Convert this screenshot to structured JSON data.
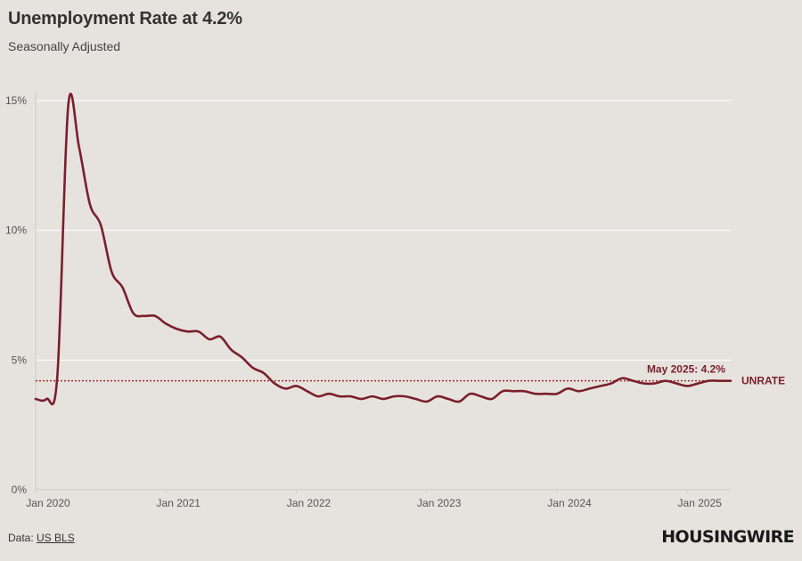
{
  "header": {
    "title": "Unemployment Rate at 4.2%",
    "subtitle": "Seasonally Adjusted"
  },
  "footer": {
    "source_prefix": "Data: ",
    "source_link": "US BLS",
    "logo": "HOUSINGWIRE"
  },
  "colors": {
    "line": "#7b1f2b",
    "reference_line": "#a52a2a",
    "annotation": "#7b1f2b",
    "grid": "#ffffff",
    "background": "#e6e3df"
  },
  "chart_data": {
    "type": "line",
    "title": "Unemployment Rate at 4.2%",
    "subtitle": "Seasonally Adjusted",
    "ylim": [
      0,
      15
    ],
    "y_ticks": [
      0,
      5,
      10,
      15
    ],
    "y_tick_labels": [
      "0%",
      "5%",
      "10%",
      "15%"
    ],
    "x_tick_labels": [
      "Jan 2020",
      "Jan 2021",
      "Jan 2022",
      "Jan 2023",
      "Jan 2024",
      "Jan 2025"
    ],
    "x_range": [
      "2020-01",
      "2025-05"
    ],
    "grid": true,
    "series": [
      {
        "name": "UNRATE",
        "x": [
          "2020-01",
          "2020-02",
          "2020-03",
          "2020-04",
          "2020-05",
          "2020-06",
          "2020-07",
          "2020-08",
          "2020-09",
          "2020-10",
          "2020-11",
          "2020-12",
          "2021-01",
          "2021-02",
          "2021-03",
          "2021-04",
          "2021-05",
          "2021-06",
          "2021-07",
          "2021-08",
          "2021-09",
          "2021-10",
          "2021-11",
          "2021-12",
          "2022-01",
          "2022-02",
          "2022-03",
          "2022-04",
          "2022-05",
          "2022-06",
          "2022-07",
          "2022-08",
          "2022-09",
          "2022-10",
          "2022-11",
          "2022-12",
          "2023-01",
          "2023-02",
          "2023-03",
          "2023-04",
          "2023-05",
          "2023-06",
          "2023-07",
          "2023-08",
          "2023-09",
          "2023-10",
          "2023-11",
          "2023-12",
          "2024-01",
          "2024-02",
          "2024-03",
          "2024-04",
          "2024-05",
          "2024-06",
          "2024-07",
          "2024-08",
          "2024-09",
          "2024-10",
          "2024-11",
          "2024-12",
          "2025-01",
          "2025-02",
          "2025-03",
          "2025-04",
          "2025-05"
        ],
        "values": [
          3.5,
          3.5,
          4.4,
          14.8,
          13.2,
          11.0,
          10.2,
          8.4,
          7.8,
          6.8,
          6.7,
          6.7,
          6.4,
          6.2,
          6.1,
          6.1,
          5.8,
          5.9,
          5.4,
          5.1,
          4.7,
          4.5,
          4.1,
          3.9,
          4.0,
          3.8,
          3.6,
          3.7,
          3.6,
          3.6,
          3.5,
          3.6,
          3.5,
          3.6,
          3.6,
          3.5,
          3.4,
          3.6,
          3.5,
          3.4,
          3.7,
          3.6,
          3.5,
          3.8,
          3.8,
          3.8,
          3.7,
          3.7,
          3.7,
          3.9,
          3.8,
          3.9,
          4.0,
          4.1,
          4.3,
          4.2,
          4.1,
          4.1,
          4.2,
          4.1,
          4.0,
          4.1,
          4.2,
          4.2,
          4.2
        ]
      }
    ],
    "reference_line": {
      "value": 4.2,
      "label": "May 2025: 4.2%"
    },
    "series_label": "UNRATE"
  }
}
